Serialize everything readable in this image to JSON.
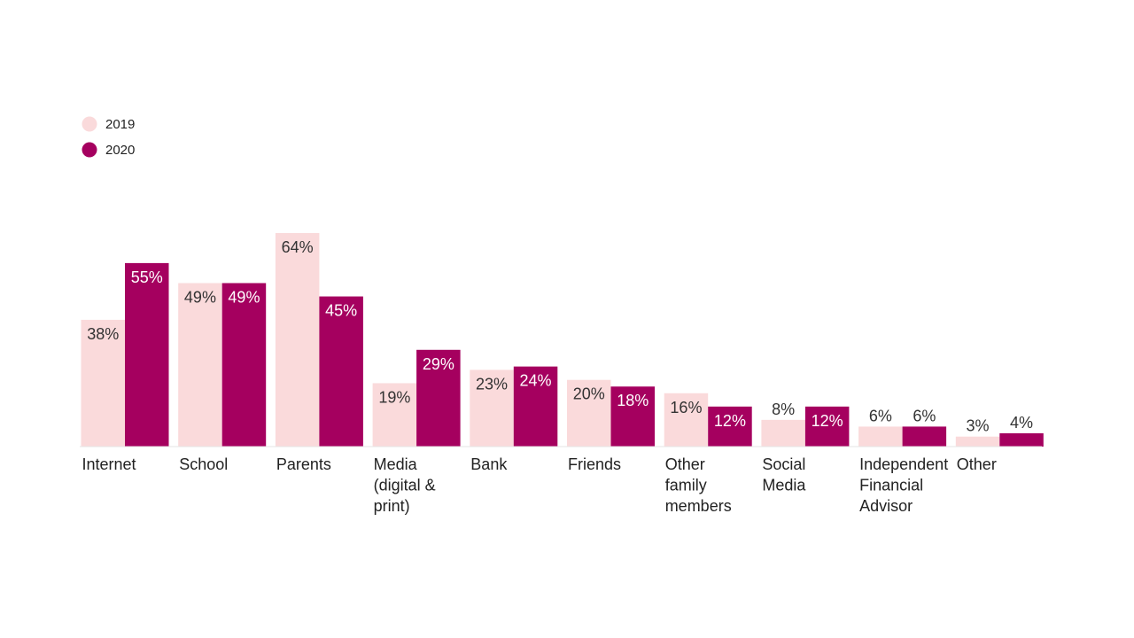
{
  "chart_data": {
    "type": "bar",
    "categories": [
      [
        "Internet"
      ],
      [
        "School"
      ],
      [
        "Parents"
      ],
      [
        "Media",
        "(digital &",
        "print)"
      ],
      [
        "Bank"
      ],
      [
        "Friends"
      ],
      [
        "Other",
        "family",
        "members"
      ],
      [
        "Social",
        "Media"
      ],
      [
        "Independent",
        "Financial",
        "Advisor"
      ],
      [
        "Other"
      ]
    ],
    "series": [
      {
        "name": "2019",
        "color": "#fadadb",
        "label_color": "#333333",
        "values": [
          38,
          49,
          64,
          19,
          23,
          20,
          16,
          8,
          6,
          3
        ],
        "labels": [
          "38%",
          "49%",
          "64%",
          "19%",
          "23%",
          "20%",
          "16%",
          "8%",
          "6%",
          "3%"
        ]
      },
      {
        "name": "2020",
        "color": "#a5005f",
        "label_color": "#ffffff",
        "values": [
          55,
          49,
          45,
          29,
          24,
          18,
          12,
          12,
          6,
          4
        ],
        "labels": [
          "55%",
          "49%",
          "45%",
          "29%",
          "24%",
          "18%",
          "12%",
          "12%",
          "6%",
          "4%"
        ]
      }
    ],
    "ylim": [
      0,
      64
    ],
    "grid": false,
    "legend_position": "top-left"
  }
}
